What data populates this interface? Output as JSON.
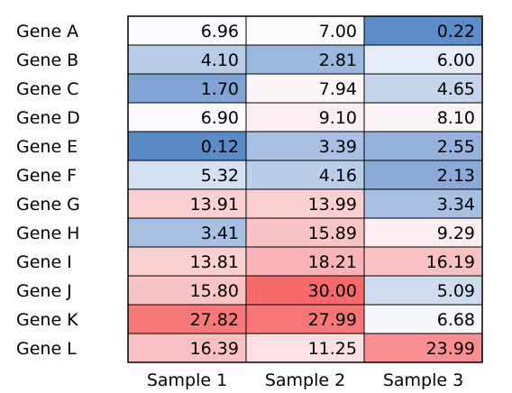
{
  "chart_data": {
    "type": "heatmap",
    "rows": [
      "Gene A",
      "Gene B",
      "Gene C",
      "Gene D",
      "Gene E",
      "Gene F",
      "Gene G",
      "Gene H",
      "Gene I",
      "Gene J",
      "Gene K",
      "Gene L"
    ],
    "columns": [
      "Sample 1",
      "Sample 2",
      "Sample 3"
    ],
    "values": [
      [
        "6.96",
        "7.00",
        "0.22"
      ],
      [
        "4.10",
        "2.81",
        "6.00"
      ],
      [
        "1.70",
        "7.94",
        "4.65"
      ],
      [
        "6.90",
        "9.10",
        "8.10"
      ],
      [
        "0.12",
        "3.39",
        "2.55"
      ],
      [
        "5.32",
        "4.16",
        "2.13"
      ],
      [
        "13.91",
        "13.99",
        "3.34"
      ],
      [
        "3.41",
        "15.89",
        "9.29"
      ],
      [
        "13.81",
        "18.21",
        "16.19"
      ],
      [
        "15.80",
        "30.00",
        "5.09"
      ],
      [
        "27.82",
        "27.99",
        "6.68"
      ],
      [
        "16.39",
        "11.25",
        "23.99"
      ]
    ],
    "color_scale": {
      "low_color": "#5b8ac9",
      "mid_color": "#fcfcff",
      "high_color": "#f8696b",
      "midpoint": 7.0
    }
  }
}
